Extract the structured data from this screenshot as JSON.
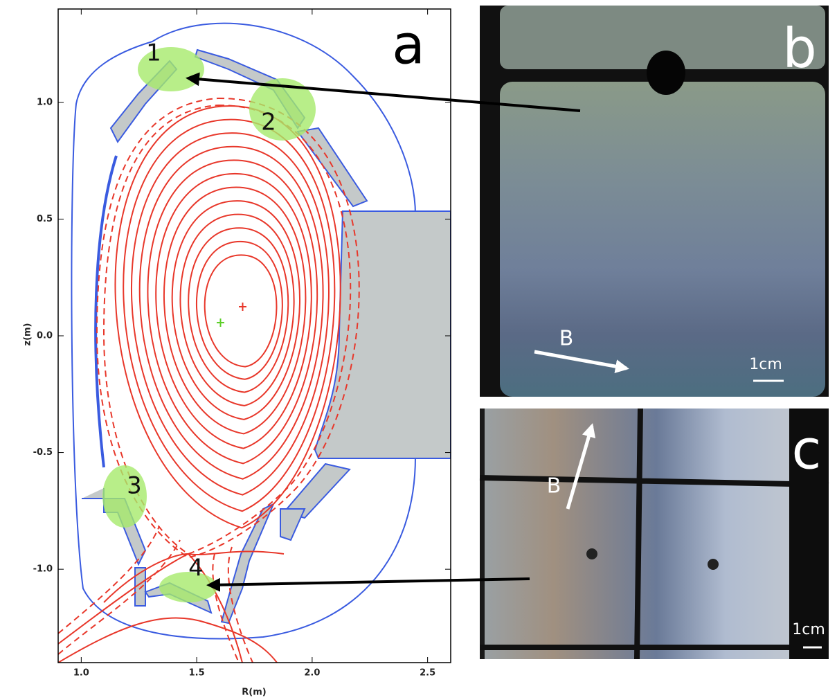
{
  "panel_a": {
    "label": "a",
    "xlabel": "R(m)",
    "ylabel": "z(m)",
    "xlim": [
      0.9,
      2.6
    ],
    "ylim": [
      -1.4,
      1.4
    ],
    "xticks": [
      {
        "value": 1,
        "label": "1.0"
      },
      1.5,
      {
        "value": 2,
        "label": "2.0"
      },
      2.5
    ],
    "yticks": [
      {
        "value": 1,
        "label": "1.0"
      },
      0.5,
      {
        "value": 0,
        "label": "0.0"
      },
      -0.5,
      {
        "value": -1,
        "label": "-1.0"
      }
    ],
    "regions": [
      "1",
      "2",
      "3",
      "4"
    ]
  },
  "panel_b": {
    "label": "b",
    "field": "B",
    "scale": "1cm"
  },
  "panel_c": {
    "label": "c",
    "field": "B",
    "scale": "1cm"
  }
}
